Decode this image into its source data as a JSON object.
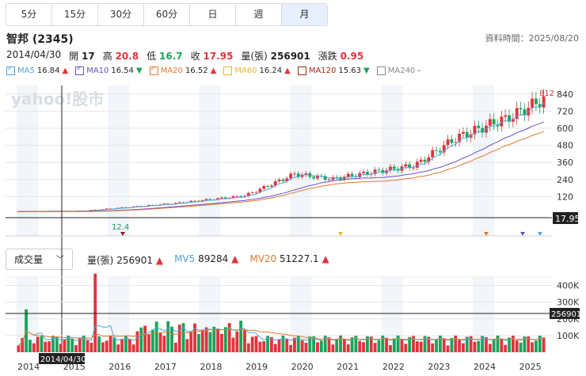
{
  "tabs": [
    "5分",
    "15分",
    "30分",
    "60分",
    "日",
    "週",
    "月"
  ],
  "active_tab": "月",
  "stock": {
    "name": "智邦 (2345)",
    "datetime": "資料時間：2025/08/20"
  },
  "ohlc": {
    "date": "2014/04/30",
    "open_label": "開",
    "open": "17",
    "high_label": "高",
    "high": "20.8",
    "low_label": "低",
    "low": "16.7",
    "close_label": "收",
    "close": "17.95",
    "vol_label": "量(張)",
    "vol": "256901",
    "chg_label": "漲跌",
    "chg": "0.95"
  },
  "ma": [
    {
      "name": "MA5",
      "value": "16.84",
      "arrow": "▲",
      "color": "#4fa3e0",
      "on": true
    },
    {
      "name": "MA10",
      "value": "16.54",
      "arrow": "▼",
      "color": "#6a4fc4",
      "on": true
    },
    {
      "name": "MA20",
      "value": "16.52",
      "arrow": "▲",
      "color": "#e0782c",
      "on": true
    },
    {
      "name": "MA60",
      "value": "16.24",
      "arrow": "▲",
      "color": "#e8b830",
      "on": false
    },
    {
      "name": "MA120",
      "value": "15.63",
      "arrow": "▼",
      "color": "#9a2a1a",
      "on": false
    },
    {
      "name": "MA240",
      "value": "-",
      "arrow": "",
      "color": "#888888",
      "on": false
    }
  ],
  "price_axis": [
    "840",
    "720",
    "600",
    "480",
    "360",
    "240",
    "120"
  ],
  "price_max_label": "812",
  "price_min_label": "12.4",
  "current_price_tag": "17.95",
  "watermark": "yahoo!股市",
  "volume": {
    "selector": "成交量",
    "vol_label": "量(張)",
    "vol": "256901",
    "vol_arrow": "▲",
    "mv5_label": "MV5",
    "mv5": "89284",
    "mv5_arrow": "▲",
    "mv20_label": "MV20",
    "mv20": "51227.1",
    "mv20_arrow": "▲",
    "axis": [
      "400K",
      "300K",
      "200K",
      "100K"
    ],
    "tag": "256901"
  },
  "x_axis": [
    "2014",
    "2015",
    "2016",
    "2017",
    "2018",
    "2019",
    "2020",
    "2021",
    "2022",
    "2023",
    "2024",
    "2025"
  ],
  "cursor_date": "2014/04/30",
  "colors": {
    "up": "#e0343c",
    "down": "#1aa35a",
    "ma5": "#4fa3e0",
    "ma10": "#6a4fc4",
    "ma20": "#e0782c"
  }
}
